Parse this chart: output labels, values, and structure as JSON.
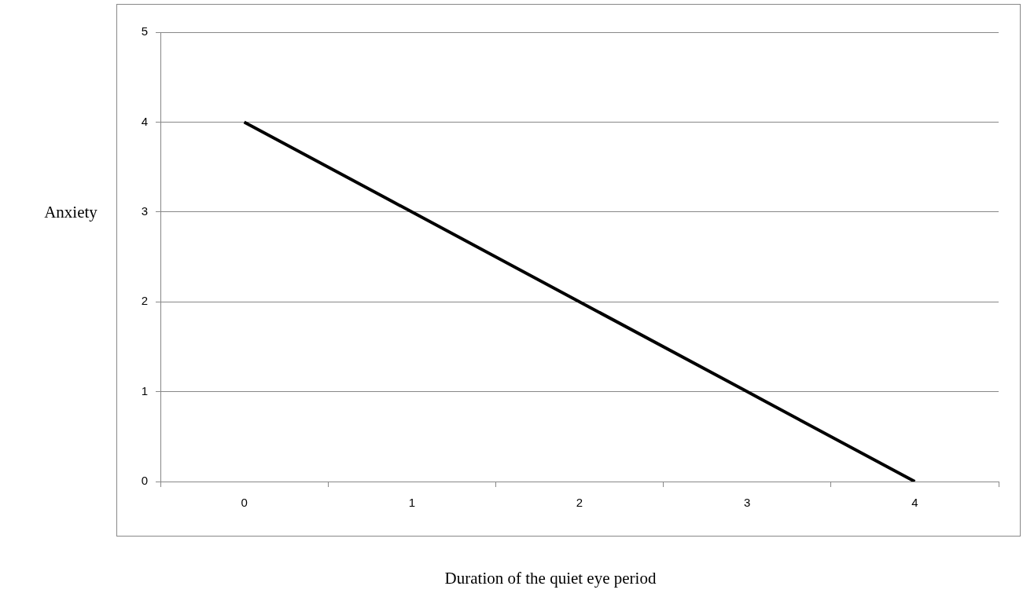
{
  "chart_data": {
    "type": "line",
    "xlabel": "Duration of the quiet eye period",
    "ylabel": "Anxiety",
    "categories": [
      "0",
      "1",
      "2",
      "3",
      "4"
    ],
    "series": [
      {
        "color": "#000000",
        "values": [
          4,
          3,
          2,
          1,
          0
        ]
      }
    ],
    "ylim": [
      0,
      5
    ],
    "yticks": [
      0,
      1,
      2,
      3,
      4,
      5
    ],
    "grid": "y",
    "marker": "none",
    "line_style": "solid"
  }
}
